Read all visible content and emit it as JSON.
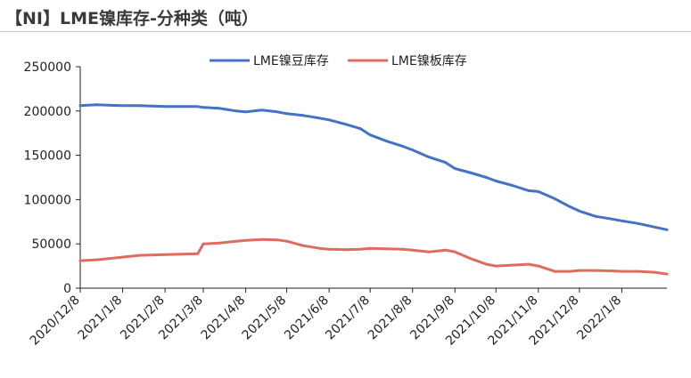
{
  "header": {
    "title": "【NI】LME镍库存-分种类（吨）"
  },
  "chart_data": {
    "type": "line",
    "title": "【NI】LME镍库存-分种类（吨）",
    "xlabel": "",
    "ylabel": "",
    "ylim": [
      0,
      250000
    ],
    "yticks": [
      "0",
      "50000",
      "100000",
      "150000",
      "200000",
      "250000"
    ],
    "xticks": [
      "2020/12/8",
      "2021/1/8",
      "2021/2/8",
      "2021/3/8",
      "2021/4/8",
      "2021/5/8",
      "2021/6/8",
      "2021/7/8",
      "2021/8/8",
      "2021/9/8",
      "2021/10/8",
      "2021/11/8",
      "2021/12/8",
      "2022/1/8"
    ],
    "grid": false,
    "legend": "top-center",
    "x": [
      "2020/12/8",
      "2020/12/20",
      "2021/1/8",
      "2021/1/20",
      "2021/2/8",
      "2021/2/20",
      "2021/3/4",
      "2021/3/8",
      "2021/3/20",
      "2021/4/1",
      "2021/4/8",
      "2021/4/20",
      "2021/5/1",
      "2021/5/8",
      "2021/5/20",
      "2021/6/1",
      "2021/6/8",
      "2021/6/20",
      "2021/7/1",
      "2021/7/8",
      "2021/7/20",
      "2021/8/1",
      "2021/8/8",
      "2021/8/20",
      "2021/9/1",
      "2021/9/8",
      "2021/9/20",
      "2021/10/1",
      "2021/10/8",
      "2021/10/20",
      "2021/11/1",
      "2021/11/8",
      "2021/11/20",
      "2021/12/1",
      "2021/12/8",
      "2021/12/20",
      "2022/1/1",
      "2022/1/8",
      "2022/1/20",
      "2022/2/1",
      "2022/2/10"
    ],
    "series": [
      {
        "name": "LME镍豆库存",
        "color": "#4472C4",
        "values": [
          206000,
          207000,
          206000,
          206000,
          205000,
          205000,
          205000,
          204000,
          203000,
          200000,
          199000,
          201000,
          199000,
          197000,
          195000,
          192000,
          190000,
          185000,
          180000,
          173000,
          166000,
          160000,
          156000,
          148000,
          142000,
          135000,
          130000,
          125000,
          121000,
          116000,
          110000,
          109000,
          101000,
          92000,
          87000,
          81000,
          78000,
          76000,
          73000,
          69000,
          66000
        ]
      },
      {
        "name": "LME镍板库存",
        "color": "#E06B60",
        "values": [
          31000,
          32000,
          35000,
          37000,
          38000,
          38500,
          39000,
          50000,
          51000,
          53000,
          54000,
          55000,
          54500,
          53000,
          48000,
          45000,
          44000,
          43500,
          44000,
          45000,
          44500,
          44000,
          43000,
          41000,
          43000,
          41000,
          33000,
          27000,
          25000,
          26000,
          27000,
          25000,
          19000,
          19000,
          20000,
          20000,
          19500,
          19000,
          19000,
          18000,
          16000
        ]
      }
    ]
  }
}
